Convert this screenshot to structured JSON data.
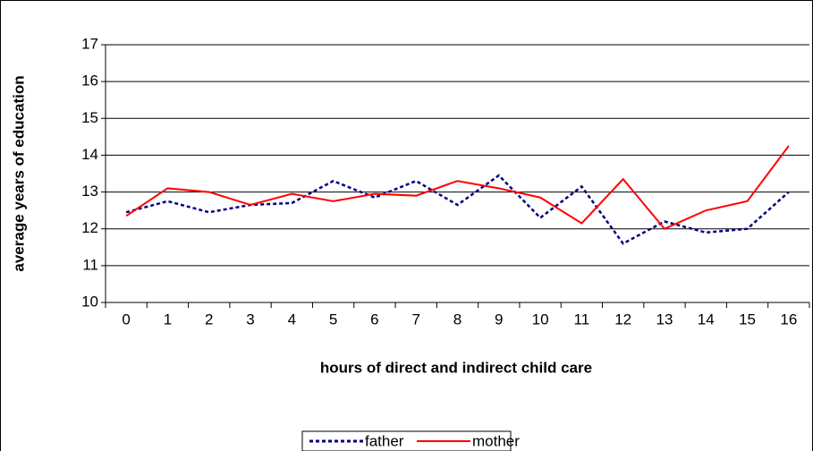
{
  "chart_data": {
    "type": "line",
    "xlabel": "hours of direct and indirect child care",
    "ylabel": "average years of education",
    "categories": [
      "0",
      "1",
      "2",
      "3",
      "4",
      "5",
      "6",
      "7",
      "8",
      "9",
      "10",
      "11",
      "12",
      "13",
      "14",
      "15",
      "16"
    ],
    "series": [
      {
        "name": "father",
        "color": "#000080",
        "dash": "dotted",
        "values": [
          12.45,
          12.75,
          12.45,
          12.65,
          12.7,
          13.3,
          12.85,
          13.3,
          12.65,
          13.45,
          12.3,
          13.15,
          11.6,
          12.2,
          11.9,
          12.0,
          13.0
        ]
      },
      {
        "name": "mother",
        "color": "#ff0000",
        "dash": "solid",
        "values": [
          12.35,
          13.1,
          13.0,
          12.65,
          12.95,
          12.75,
          12.95,
          12.9,
          13.3,
          13.1,
          12.85,
          12.15,
          13.35,
          12.0,
          12.5,
          12.75,
          14.25
        ]
      }
    ],
    "ylim": [
      10,
      17
    ],
    "yticks": [
      10,
      11,
      12,
      13,
      14,
      15,
      16,
      17
    ],
    "grid": true,
    "legend": "bottom"
  }
}
